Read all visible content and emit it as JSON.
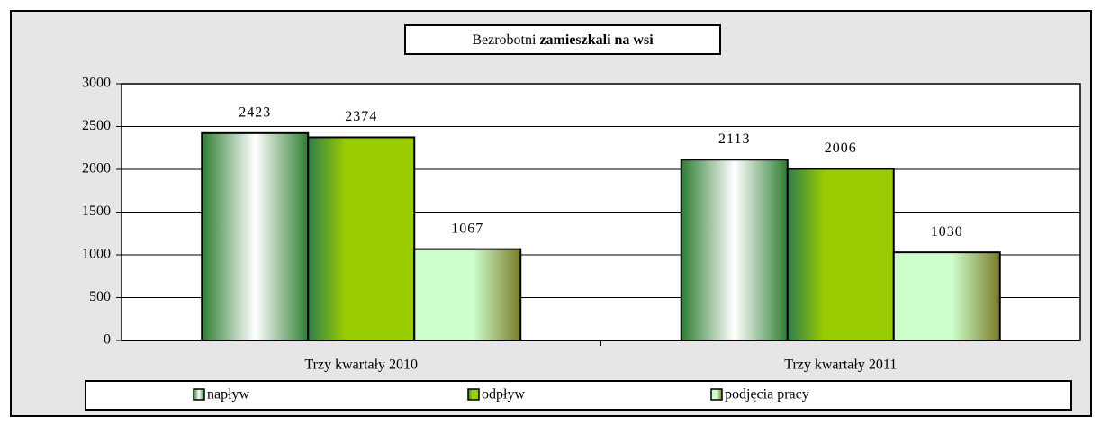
{
  "chart_data": {
    "type": "bar",
    "title": [
      "Bezrobotni",
      "zamieszkali na wsi"
    ],
    "categories": [
      "Trzy kwartały 2010",
      "Trzy kwartały 2011"
    ],
    "series": [
      {
        "name": "napływ",
        "color": "#ffffff",
        "values": [
          2423,
          2113
        ]
      },
      {
        "name": "odpływ",
        "color": "#99cc00",
        "values": [
          2374,
          2006
        ]
      },
      {
        "name": "podjęcia pracy",
        "color": "#ccffcc",
        "values": [
          1067,
          1030
        ]
      }
    ],
    "ylim": [
      0,
      3000
    ],
    "yticks": [
      0,
      500,
      1000,
      1500,
      2000,
      2500,
      3000
    ],
    "grid": true,
    "legend": "bottom"
  }
}
